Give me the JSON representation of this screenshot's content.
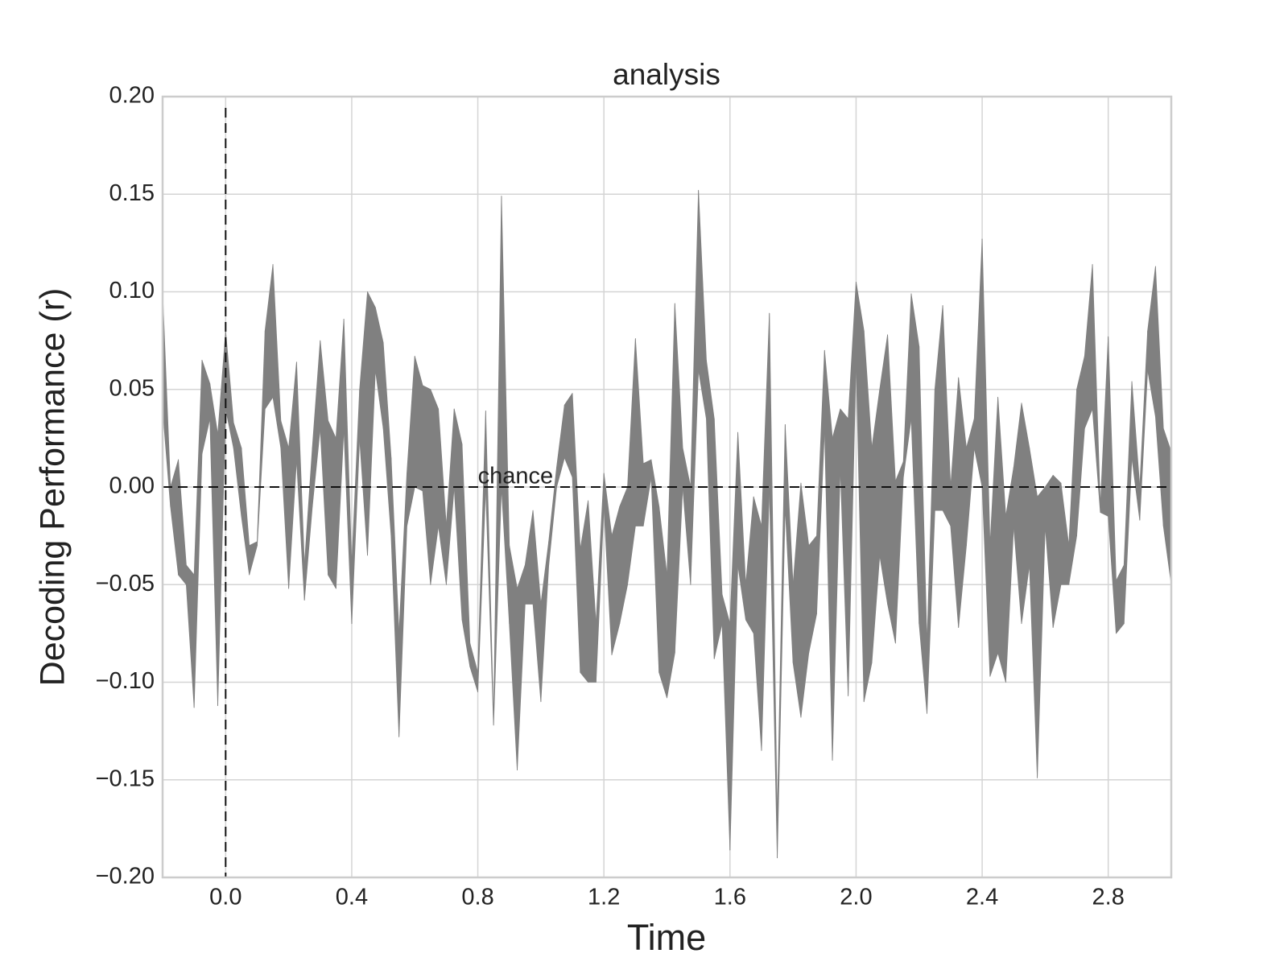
{
  "chart_data": {
    "type": "band",
    "title": "analysis",
    "xlabel": "Time",
    "ylabel": "Decoding Performance (r)",
    "color": "#808080",
    "grid": true,
    "xlim": [
      -0.2,
      3.0
    ],
    "ylim": [
      -0.2,
      0.2
    ],
    "xticks": [
      {
        "value": 0,
        "label": "0.0"
      },
      0.4,
      0.8,
      1.2,
      1.6,
      {
        "value": 2,
        "label": "2.0"
      },
      2.4,
      2.8
    ],
    "yticks": [
      {
        "value": -0.2,
        "label": "−0.20"
      },
      {
        "value": -0.15,
        "label": "−0.15"
      },
      {
        "value": -0.1,
        "label": "−0.10"
      },
      {
        "value": -0.05,
        "label": "−0.05"
      },
      {
        "value": 0,
        "label": "0.00"
      },
      {
        "value": 0.05,
        "label": "0.05"
      },
      {
        "value": 0.1,
        "label": "0.10"
      },
      {
        "value": 0.15,
        "label": "0.15"
      },
      {
        "value": 0.2,
        "label": "0.20"
      }
    ],
    "hline": 0,
    "vline": 0,
    "annotation": {
      "text": "chance",
      "x": 0.8,
      "y": 0
    },
    "x": [
      -0.2,
      -0.175,
      -0.15,
      -0.125,
      -0.1,
      -0.075,
      -0.05,
      -0.025,
      0,
      0.025,
      0.05,
      0.075,
      0.1,
      0.125,
      0.15,
      0.175,
      0.2,
      0.225,
      0.25,
      0.275,
      0.3,
      0.325,
      0.35,
      0.375,
      0.4,
      0.425,
      0.45,
      0.475,
      0.5,
      0.525,
      0.55,
      0.575,
      0.6,
      0.625,
      0.65,
      0.675,
      0.7,
      0.725,
      0.75,
      0.775,
      0.8,
      0.825,
      0.85,
      0.875,
      0.9,
      0.925,
      0.95,
      0.975,
      1,
      1.025,
      1.05,
      1.075,
      1.1,
      1.125,
      1.15,
      1.175,
      1.2,
      1.225,
      1.25,
      1.275,
      1.3,
      1.325,
      1.35,
      1.375,
      1.4,
      1.425,
      1.45,
      1.475,
      1.5,
      1.525,
      1.55,
      1.575,
      1.6,
      1.625,
      1.65,
      1.675,
      1.7,
      1.725,
      1.75,
      1.775,
      1.8,
      1.825,
      1.85,
      1.875,
      1.9,
      1.925,
      1.95,
      1.975,
      2,
      2.025,
      2.05,
      2.075,
      2.1,
      2.125,
      2.15,
      2.175,
      2.2,
      2.225,
      2.25,
      2.275,
      2.3,
      2.325,
      2.35,
      2.375,
      2.4,
      2.425,
      2.45,
      2.475,
      2.5,
      2.525,
      2.55,
      2.575,
      2.6,
      2.625,
      2.65,
      2.675,
      2.7,
      2.725,
      2.75,
      2.775,
      2.8,
      2.825,
      2.85,
      2.875,
      2.9,
      2.925,
      2.95,
      2.975,
      3
    ],
    "upper": [
      0.1,
      0,
      0.014,
      -0.04,
      -0.045,
      0.065,
      0.053,
      0.027,
      0.08,
      0.033,
      0.02,
      -0.03,
      -0.028,
      0.08,
      0.114,
      0.034,
      0.02,
      0.064,
      -0.04,
      0.02,
      0.075,
      0.034,
      0.025,
      0.086,
      -0.04,
      0.05,
      0.1,
      0.092,
      0.074,
      0.015,
      -0.075,
      0.007,
      0.067,
      0.052,
      0.05,
      0.04,
      -0.02,
      0.04,
      0.022,
      -0.08,
      -0.095,
      0.039,
      -0.12,
      0.149,
      -0.03,
      -0.052,
      -0.04,
      -0.012,
      -0.06,
      -0.028,
      0.01,
      0.042,
      0.048,
      -0.032,
      -0.007,
      -0.07,
      0.007,
      -0.025,
      -0.01,
      0,
      0.076,
      0.012,
      0.014,
      -0.01,
      -0.045,
      0.094,
      0.02,
      0,
      0.152,
      0.065,
      0.035,
      -0.055,
      -0.07,
      0.028,
      -0.05,
      -0.005,
      -0.02,
      0.089,
      -0.17,
      0.032,
      -0.05,
      0.002,
      -0.03,
      -0.025,
      0.07,
      0.025,
      0.04,
      0.035,
      0.105,
      0.08,
      0.02,
      0.05,
      0.078,
      0.003,
      0.013,
      0.099,
      0.072,
      -0.08,
      0.05,
      0.093,
      0,
      0.056,
      0.02,
      0.035,
      0.127,
      -0.03,
      0.046,
      -0.015,
      0.01,
      0.043,
      0.02,
      -0.005,
      0,
      0.006,
      0.002,
      -0.03,
      0.05,
      0.067,
      0.114,
      -0.01,
      0.077,
      -0.048,
      -0.04,
      0.054,
      0,
      0.08,
      0.113,
      0.03,
      0.018
    ],
    "lower": [
      0.04,
      -0.01,
      -0.045,
      -0.05,
      -0.113,
      0.017,
      0.035,
      -0.112,
      0.04,
      0.02,
      -0.015,
      -0.045,
      -0.03,
      0.04,
      0.046,
      0.02,
      -0.052,
      0.014,
      -0.058,
      -0.01,
      0.03,
      -0.045,
      -0.052,
      0.03,
      -0.07,
      0.025,
      -0.035,
      0.06,
      0.03,
      -0.025,
      -0.128,
      -0.02,
      0,
      -0.002,
      -0.05,
      -0.02,
      -0.05,
      0,
      -0.068,
      -0.092,
      -0.105,
      0,
      -0.122,
      0,
      -0.07,
      -0.145,
      -0.06,
      -0.06,
      -0.11,
      -0.04,
      0,
      0.015,
      0.005,
      -0.095,
      -0.1,
      -0.1,
      -0.01,
      -0.086,
      -0.07,
      -0.05,
      -0.02,
      -0.02,
      0.005,
      -0.095,
      -0.108,
      -0.085,
      0,
      -0.05,
      0.06,
      0.035,
      -0.088,
      -0.07,
      -0.186,
      -0.04,
      -0.068,
      -0.075,
      -0.135,
      0,
      -0.19,
      -0.01,
      -0.09,
      -0.118,
      -0.085,
      -0.065,
      0.03,
      -0.14,
      0.01,
      -0.107,
      0.065,
      -0.11,
      -0.09,
      -0.035,
      -0.06,
      -0.08,
      0.005,
      0.035,
      -0.07,
      -0.116,
      -0.012,
      -0.012,
      -0.02,
      -0.072,
      -0.03,
      0.02,
      0,
      -0.097,
      -0.085,
      -0.1,
      -0.02,
      -0.07,
      -0.04,
      -0.149,
      -0.02,
      -0.072,
      -0.05,
      -0.05,
      -0.025,
      0.03,
      0.04,
      -0.013,
      -0.015,
      -0.075,
      -0.07,
      0.015,
      -0.017,
      0.06,
      0.036,
      -0.02,
      -0.05
    ]
  }
}
